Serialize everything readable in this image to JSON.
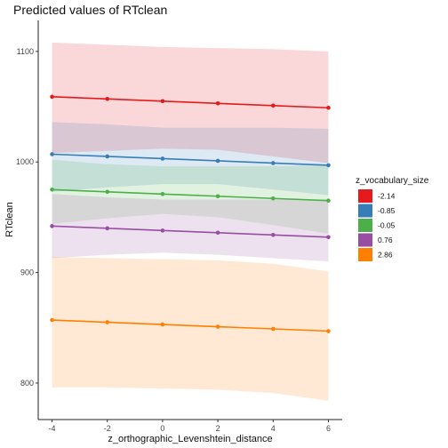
{
  "chart_data": {
    "type": "line",
    "title": "Predicted values of RTclean",
    "xlabel": "z_orthographic_Levenshtein_distance",
    "ylabel": "RTclean",
    "x": [
      -4,
      -2,
      0,
      2,
      4,
      6
    ],
    "x_ticks": [
      -4,
      -2,
      0,
      2,
      4,
      6
    ],
    "y_ticks": [
      800,
      900,
      1000,
      1100
    ],
    "xlim": [
      -4.5,
      6.5
    ],
    "ylim": [
      767,
      1128
    ],
    "grid": false,
    "legend_title": "z_vocabulary_size",
    "legend_position": "right",
    "series": [
      {
        "name": "-2.14",
        "color": "#E41A1C",
        "values": [
          1059,
          1057,
          1055,
          1053,
          1051,
          1049
        ],
        "lower": [
          1008,
          1010,
          1012,
          1011,
          1005,
          999
        ],
        "upper": [
          1108,
          1106,
          1104,
          1103,
          1102,
          1100
        ]
      },
      {
        "name": "-0.85",
        "color": "#377EB8",
        "values": [
          1007,
          1005,
          1003,
          1001,
          999,
          997
        ],
        "lower": [
          973,
          977,
          980,
          980,
          975,
          970
        ],
        "upper": [
          1036,
          1034,
          1031,
          1031,
          1031,
          1030
        ]
      },
      {
        "name": "-0.05",
        "color": "#4DAF4A",
        "values": [
          975,
          973,
          971,
          969,
          967,
          965
        ],
        "lower": [
          944,
          949,
          953,
          950,
          943,
          935
        ],
        "upper": [
          1002,
          998,
          996,
          996,
          996,
          997
        ]
      },
      {
        "name": "0.76",
        "color": "#984EA3",
        "values": [
          942,
          940,
          938,
          936,
          934,
          932
        ],
        "lower": [
          913,
          916,
          918,
          916,
          913,
          910
        ],
        "upper": [
          971,
          968,
          966,
          966,
          966,
          966
        ]
      },
      {
        "name": "2.86",
        "color": "#FF7F00",
        "values": [
          857,
          855,
          853,
          851,
          849,
          847
        ],
        "lower": [
          796,
          796,
          795,
          794,
          791,
          784
        ],
        "upper": [
          914,
          913,
          912,
          911,
          908,
          901
        ]
      }
    ]
  }
}
